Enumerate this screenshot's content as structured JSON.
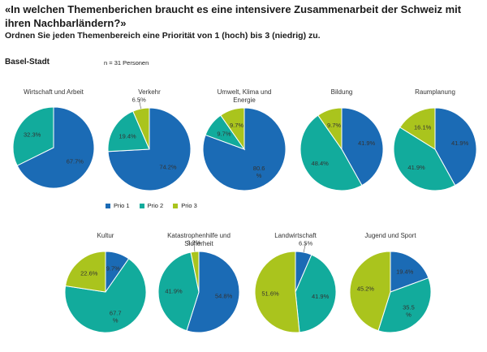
{
  "header": {
    "title": "«In welchen Themenberichen braucht es eine intensivere Zusammenarbeit der Schweiz mit ihren Nachbarländern?»",
    "subtitle": "Ordnen Sie jeden Themenbereich eine Priorität von 1 (hoch) bis 3 (niedrig) zu.",
    "region": "Basel-Stadt",
    "sample": "n = 31 Personen"
  },
  "colors": {
    "prio1": "#1b6bb5",
    "prio2": "#12ab9c",
    "prio3": "#aac41d"
  },
  "legend": {
    "prio1": "Prio 1",
    "prio2": "Prio 2",
    "prio3": "Prio 3"
  },
  "chart_data": [
    {
      "type": "pie",
      "title": [
        "Wirtschaft und Arbeit"
      ],
      "series": [
        "Prio 1",
        "Prio 2",
        "Prio 3"
      ],
      "values": [
        67.7,
        32.3,
        0
      ],
      "labels": [
        "67.7%",
        "32.3%",
        ""
      ]
    },
    {
      "type": "pie",
      "title": [
        "Verkehr"
      ],
      "series": [
        "Prio 1",
        "Prio 2",
        "Prio 3"
      ],
      "values": [
        74.2,
        19.4,
        6.5
      ],
      "labels": [
        "74.2%",
        "19.4%",
        "6.5%"
      ]
    },
    {
      "type": "pie",
      "title": [
        "Umwelt, Klima und",
        "Energie"
      ],
      "series": [
        "Prio 1",
        "Prio 2",
        "Prio 3"
      ],
      "values": [
        80.6,
        9.7,
        9.7
      ],
      "labels": [
        "80.6 %",
        "9.7%",
        "9.7%"
      ]
    },
    {
      "type": "pie",
      "title": [
        "Bildung"
      ],
      "series": [
        "Prio 1",
        "Prio 2",
        "Prio 3"
      ],
      "values": [
        41.9,
        48.4,
        9.7
      ],
      "labels": [
        "41.9%",
        "48.4%",
        "9.7%"
      ]
    },
    {
      "type": "pie",
      "title": [
        "Raumplanung"
      ],
      "series": [
        "Prio 1",
        "Prio 2",
        "Prio 3"
      ],
      "values": [
        41.9,
        41.9,
        16.1
      ],
      "labels": [
        "41.9%",
        "41.9%",
        "16.1%"
      ]
    },
    {
      "type": "pie",
      "title": [
        "Kultur"
      ],
      "series": [
        "Prio 1",
        "Prio 2",
        "Prio 3"
      ],
      "values": [
        9.7,
        67.7,
        22.6
      ],
      "labels": [
        "9.7%",
        "67.7 %",
        "22.6%"
      ]
    },
    {
      "type": "pie",
      "title": [
        "Katastrophenhilfe und",
        "Sicherheit"
      ],
      "series": [
        "Prio 1",
        "Prio 2",
        "Prio 3"
      ],
      "values": [
        54.8,
        41.9,
        3.2
      ],
      "labels": [
        "54.8%",
        "41.9%",
        "3.2%"
      ]
    },
    {
      "type": "pie",
      "title": [
        "Landwirtschaft"
      ],
      "series": [
        "Prio 1",
        "Prio 2",
        "Prio 3"
      ],
      "values": [
        6.5,
        41.9,
        51.6
      ],
      "labels": [
        "6.5%",
        "41.9%",
        "51.6%"
      ]
    },
    {
      "type": "pie",
      "title": [
        "Jugend und Sport"
      ],
      "series": [
        "Prio 1",
        "Prio 2",
        "Prio 3"
      ],
      "values": [
        19.4,
        35.5,
        45.2
      ],
      "labels": [
        "19.4%",
        "35.5 %",
        "45.2%"
      ]
    }
  ]
}
